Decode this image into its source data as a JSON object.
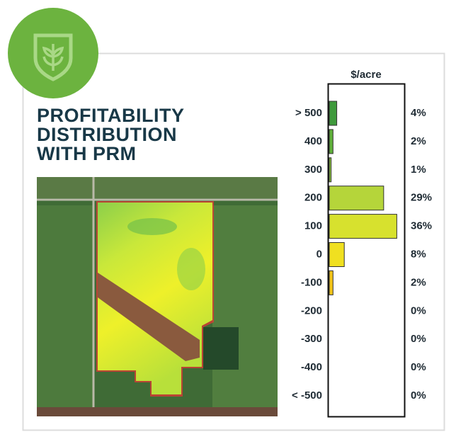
{
  "chart_data": {
    "type": "bar",
    "orientation": "horizontal",
    "title_lines": [
      "PROFITABILITY",
      "DISTRIBUTION",
      "WITH PRM"
    ],
    "value_axis_label": "$/acre",
    "categories": [
      "> 500",
      "400",
      "300",
      "200",
      "100",
      "0",
      "-100",
      "-200",
      "-300",
      "-400",
      "< -500"
    ],
    "values": [
      4,
      2,
      1,
      29,
      36,
      8,
      2,
      0,
      0,
      0,
      0
    ],
    "value_labels": [
      "4%",
      "2%",
      "1%",
      "29%",
      "36%",
      "8%",
      "2%",
      "0%",
      "0%",
      "0%",
      "0%"
    ],
    "colors": [
      "#3f9a3c",
      "#5fb03a",
      "#8cc63f",
      "#b5d53a",
      "#d7e12e",
      "#f0e020",
      "#f2c418",
      "#f2c418",
      "#f2c418",
      "#f2c418",
      "#f2c418"
    ]
  }
}
